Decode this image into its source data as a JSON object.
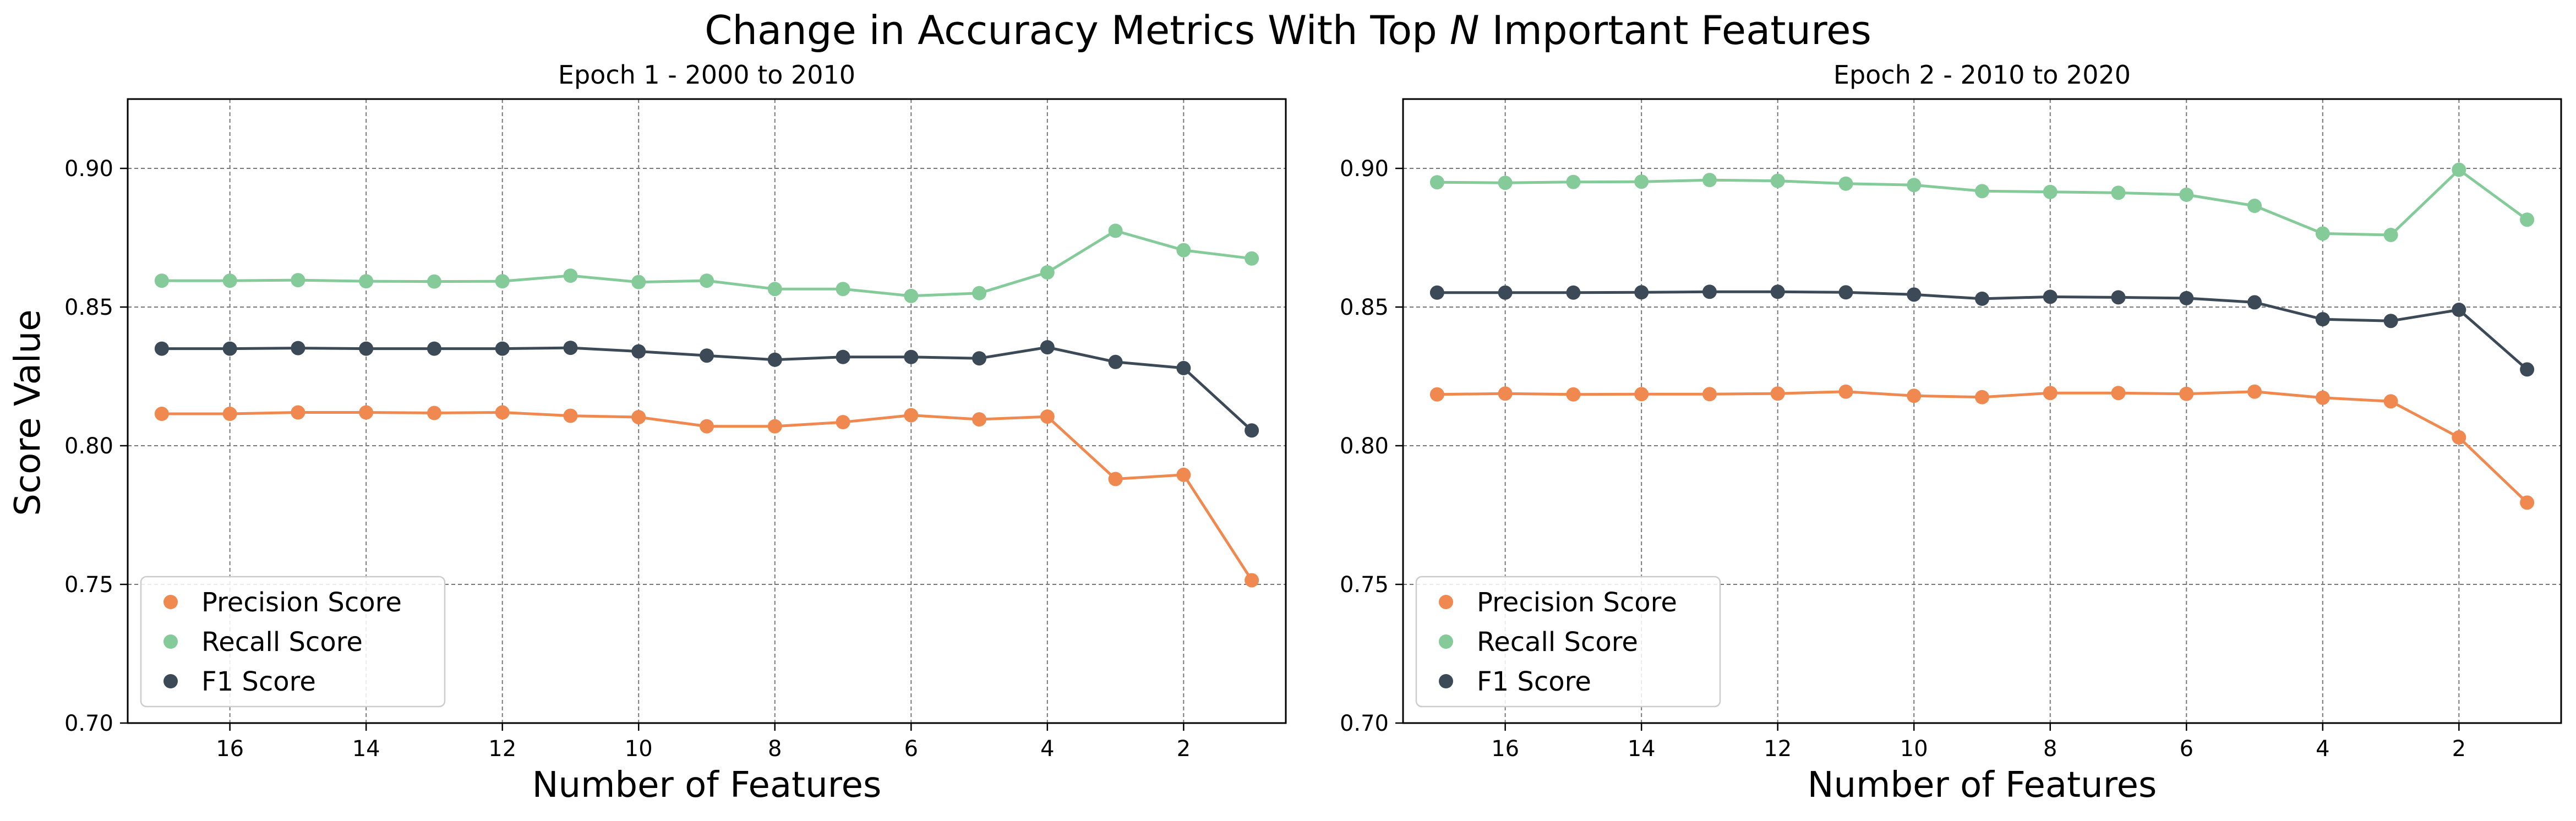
{
  "figure": {
    "suptitle_prefix": "Change in Accuracy Metrics With Top ",
    "suptitle_italic": "N",
    "suptitle_suffix": " Important Features"
  },
  "colors": {
    "precision": "#f0894f",
    "recall": "#85cb9a",
    "f1": "#3c4a57",
    "grid": "#777777",
    "axis": "#000000"
  },
  "chart_data": [
    {
      "type": "line",
      "title": "Epoch 1 - 2000 to 2010",
      "xlabel": "Number of Features",
      "ylabel": "Score Value",
      "x": [
        17,
        16,
        15,
        14,
        13,
        12,
        11,
        10,
        9,
        8,
        7,
        6,
        5,
        4,
        3,
        2,
        1
      ],
      "xlim": [
        17.5,
        0.5
      ],
      "ylim": [
        0.7,
        0.925
      ],
      "xticks": [
        16,
        14,
        12,
        10,
        8,
        6,
        4,
        2
      ],
      "yticks": [
        0.7,
        0.75,
        0.8,
        0.85,
        0.9
      ],
      "ytick_labels": [
        "0.70",
        "0.75",
        "0.80",
        "0.85",
        "0.90"
      ],
      "grid": true,
      "legend_position": "lower-left",
      "series": [
        {
          "name": "Precision Score",
          "key": "precision",
          "values": [
            0.8115,
            0.8115,
            0.812,
            0.812,
            0.8118,
            0.812,
            0.8108,
            0.8103,
            0.807,
            0.807,
            0.8085,
            0.811,
            0.8095,
            0.8105,
            0.788,
            0.7895,
            0.7515
          ]
        },
        {
          "name": "Recall Score",
          "key": "recall",
          "values": [
            0.8595,
            0.8595,
            0.8597,
            0.8593,
            0.8592,
            0.8593,
            0.8613,
            0.859,
            0.8595,
            0.8565,
            0.8565,
            0.854,
            0.855,
            0.8625,
            0.8775,
            0.8705,
            0.8675
          ]
        },
        {
          "name": "F1 Score",
          "key": "f1",
          "values": [
            0.835,
            0.835,
            0.8352,
            0.835,
            0.835,
            0.835,
            0.8353,
            0.834,
            0.8325,
            0.831,
            0.832,
            0.832,
            0.8315,
            0.8355,
            0.8302,
            0.828,
            0.8055
          ]
        }
      ]
    },
    {
      "type": "line",
      "title": "Epoch 2 - 2010 to 2020",
      "xlabel": "Number of Features",
      "ylabel": "",
      "x": [
        17,
        16,
        15,
        14,
        13,
        12,
        11,
        10,
        9,
        8,
        7,
        6,
        5,
        4,
        3,
        2,
        1
      ],
      "xlim": [
        17.5,
        0.5
      ],
      "ylim": [
        0.7,
        0.925
      ],
      "xticks": [
        16,
        14,
        12,
        10,
        8,
        6,
        4,
        2
      ],
      "yticks": [
        0.7,
        0.75,
        0.8,
        0.85,
        0.9
      ],
      "ytick_labels": [
        "0.70",
        "0.75",
        "0.80",
        "0.85",
        "0.90"
      ],
      "grid": true,
      "legend_position": "lower-left",
      "series": [
        {
          "name": "Precision Score",
          "key": "precision",
          "values": [
            0.8185,
            0.8188,
            0.8185,
            0.8186,
            0.8186,
            0.8188,
            0.8195,
            0.818,
            0.8175,
            0.819,
            0.819,
            0.8187,
            0.8195,
            0.8173,
            0.816,
            0.803,
            0.7795
          ]
        },
        {
          "name": "Recall Score",
          "key": "recall",
          "values": [
            0.895,
            0.8948,
            0.8951,
            0.8952,
            0.8958,
            0.8955,
            0.8945,
            0.894,
            0.8918,
            0.8915,
            0.8912,
            0.8905,
            0.8865,
            0.8765,
            0.876,
            0.8995,
            0.8815
          ]
        },
        {
          "name": "F1 Score",
          "key": "f1",
          "values": [
            0.8552,
            0.8552,
            0.8552,
            0.8553,
            0.8555,
            0.8555,
            0.8553,
            0.8545,
            0.853,
            0.8537,
            0.8535,
            0.8532,
            0.8517,
            0.8456,
            0.845,
            0.849,
            0.8275
          ]
        }
      ]
    }
  ]
}
